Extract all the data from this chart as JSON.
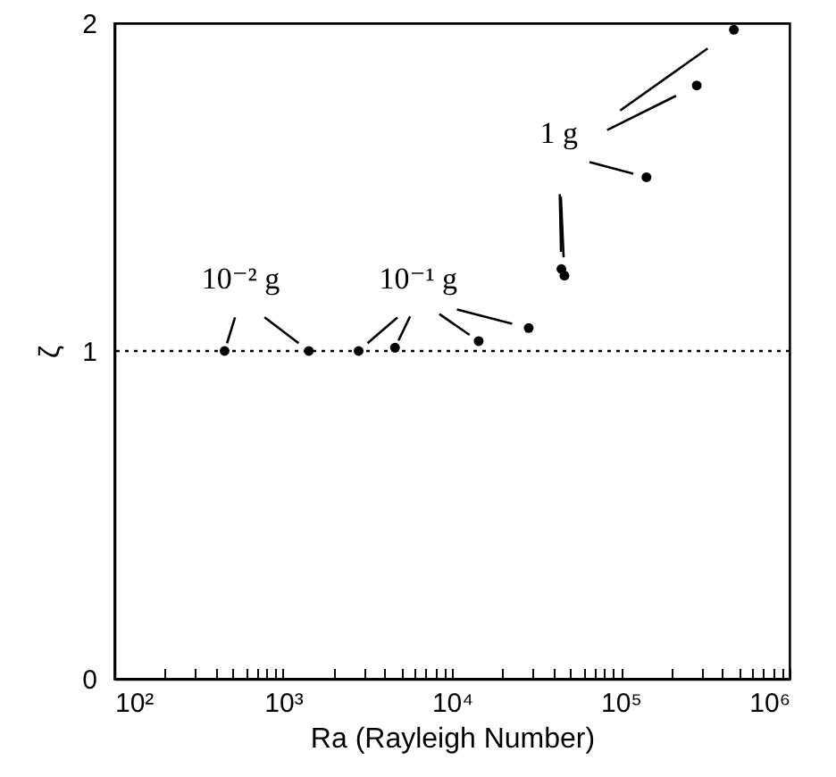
{
  "chart_data": {
    "type": "scatter",
    "xlabel": "Ra (Rayleigh Number)",
    "ylabel": "ζ",
    "x": [
      450,
      1420,
      2800,
      4600,
      14400,
      28500,
      46400,
      44500,
      142000,
      282000,
      468000
    ],
    "series": [
      {
        "color": "#000000",
        "values": [
          1.0,
          1.0,
          1.0,
          1.01,
          1.03,
          1.07,
          1.23,
          1.25,
          1.53,
          1.81,
          1.98
        ]
      }
    ],
    "log": "x",
    "marker": "circle",
    "grid": false,
    "xlim": [
      100,
      1000000
    ],
    "xticks": [
      {
        "value": 100,
        "label": "10²"
      },
      {
        "value": 200,
        "label": null
      },
      {
        "value": 300,
        "label": null
      },
      {
        "value": 400,
        "label": null
      },
      {
        "value": 500,
        "label": null
      },
      {
        "value": 600,
        "label": null
      },
      {
        "value": 700,
        "label": null
      },
      {
        "value": 800,
        "label": null
      },
      {
        "value": 900,
        "label": null
      },
      {
        "value": 1000,
        "label": "10³"
      },
      {
        "value": 2000,
        "label": null
      },
      {
        "value": 3000,
        "label": null
      },
      {
        "value": 4000,
        "label": null
      },
      {
        "value": 5000,
        "label": null
      },
      {
        "value": 6000,
        "label": null
      },
      {
        "value": 7000,
        "label": null
      },
      {
        "value": 8000,
        "label": null
      },
      {
        "value": 9000,
        "label": null
      },
      {
        "value": 10000,
        "label": "10⁴"
      },
      {
        "value": 20000,
        "label": null
      },
      {
        "value": 30000,
        "label": null
      },
      {
        "value": 40000,
        "label": null
      },
      {
        "value": 50000,
        "label": null
      },
      {
        "value": 60000,
        "label": null
      },
      {
        "value": 70000,
        "label": null
      },
      {
        "value": 80000,
        "label": null
      },
      {
        "value": 90000,
        "label": null
      },
      {
        "value": 100000,
        "label": "10⁵"
      },
      {
        "value": 200000,
        "label": null
      },
      {
        "value": 300000,
        "label": null
      },
      {
        "value": 400000,
        "label": null
      },
      {
        "value": 500000,
        "label": null
      },
      {
        "value": 600000,
        "label": null
      },
      {
        "value": 700000,
        "label": null
      },
      {
        "value": 800000,
        "label": null
      },
      {
        "value": 900000,
        "label": null
      },
      {
        "value": 1000000,
        "label": "10⁶"
      }
    ],
    "ylim": [
      0,
      2
    ],
    "yticks": [
      0,
      1,
      2
    ],
    "ref_lines": [
      {
        "axis": "y",
        "value": 1,
        "line_style": "dotted",
        "color": "#000000"
      }
    ],
    "annotations": [
      {
        "text": "10⁻² g",
        "x": 450,
        "y": 1.0
      },
      {
        "text": "10⁻¹ g",
        "x": 4600,
        "y": 1.01
      },
      {
        "text": "1 g",
        "x": 142000,
        "y": 1.53
      }
    ]
  }
}
